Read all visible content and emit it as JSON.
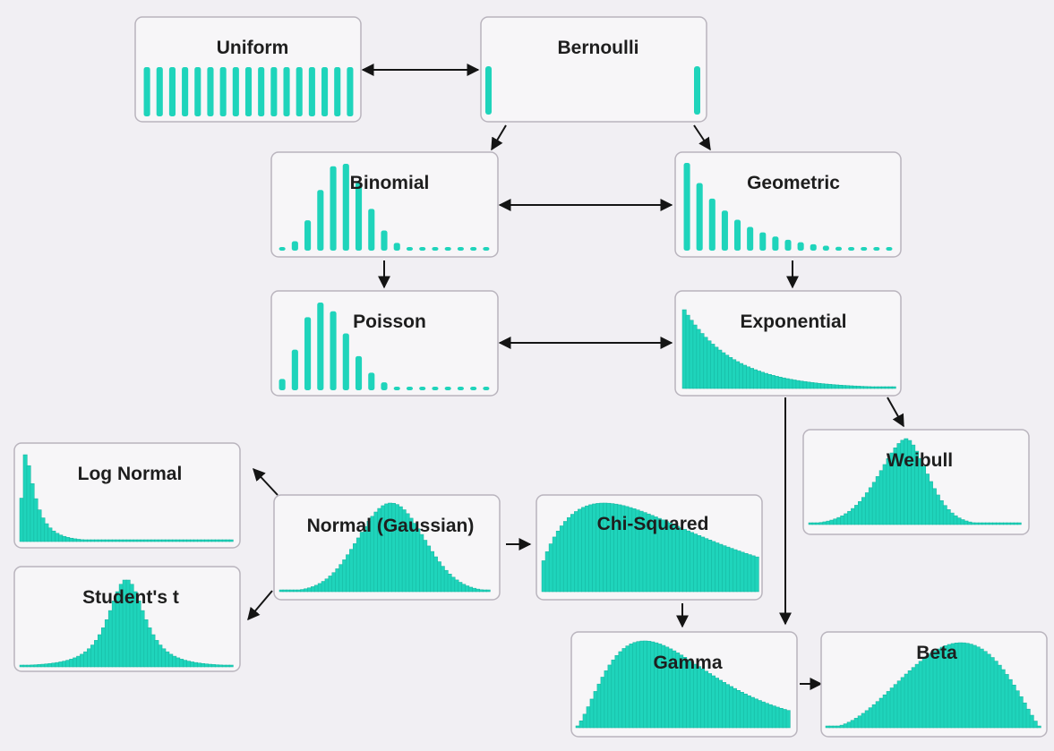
{
  "colors": {
    "background": "#f1eff3",
    "box_fill": "#f7f6f8",
    "box_border": "#b9b4bd",
    "bar": "#1fd4bb",
    "bar_edge": "#14b39d",
    "arrow": "#141414"
  },
  "nodes": [
    {
      "id": "uniform",
      "label": "Uniform",
      "kind": "discrete",
      "shape": "uniform"
    },
    {
      "id": "bernoulli",
      "label": "Bernoulli",
      "kind": "discrete",
      "shape": "bernoulli"
    },
    {
      "id": "binomial",
      "label": "Binomial",
      "kind": "discrete",
      "shape": "binomial"
    },
    {
      "id": "geometric",
      "label": "Geometric",
      "kind": "discrete",
      "shape": "geometric"
    },
    {
      "id": "poisson",
      "label": "Poisson",
      "kind": "discrete",
      "shape": "poisson"
    },
    {
      "id": "exponential",
      "label": "Exponential",
      "kind": "continuous",
      "shape": "exponential"
    },
    {
      "id": "weibull",
      "label": "Weibull",
      "kind": "continuous",
      "shape": "weibull"
    },
    {
      "id": "lognormal",
      "label": "Log Normal",
      "kind": "continuous",
      "shape": "lognormal"
    },
    {
      "id": "normal",
      "label": "Normal (Gaussian)",
      "kind": "continuous",
      "shape": "normal"
    },
    {
      "id": "chisquared",
      "label": "Chi-Squared",
      "kind": "continuous",
      "shape": "chisquared"
    },
    {
      "id": "studentt",
      "label": "Student's t",
      "kind": "continuous",
      "shape": "studentt"
    },
    {
      "id": "gamma",
      "label": "Gamma",
      "kind": "continuous",
      "shape": "gamma"
    },
    {
      "id": "beta",
      "label": "Beta",
      "kind": "continuous",
      "shape": "beta"
    }
  ],
  "edges": [
    {
      "from": "uniform",
      "to": "bernoulli",
      "direction": "both"
    },
    {
      "from": "bernoulli",
      "to": "binomial",
      "direction": "forward"
    },
    {
      "from": "bernoulli",
      "to": "geometric",
      "direction": "forward"
    },
    {
      "from": "binomial",
      "to": "geometric",
      "direction": "both"
    },
    {
      "from": "binomial",
      "to": "poisson",
      "direction": "forward"
    },
    {
      "from": "geometric",
      "to": "exponential",
      "direction": "forward"
    },
    {
      "from": "poisson",
      "to": "exponential",
      "direction": "both"
    },
    {
      "from": "exponential",
      "to": "weibull",
      "direction": "forward"
    },
    {
      "from": "exponential",
      "to": "gamma",
      "direction": "forward"
    },
    {
      "from": "normal",
      "to": "lognormal",
      "direction": "forward"
    },
    {
      "from": "normal",
      "to": "studentt",
      "direction": "forward"
    },
    {
      "from": "normal",
      "to": "chisquared",
      "direction": "forward"
    },
    {
      "from": "chisquared",
      "to": "gamma",
      "direction": "forward"
    },
    {
      "from": "gamma",
      "to": "beta",
      "direction": "forward"
    }
  ]
}
